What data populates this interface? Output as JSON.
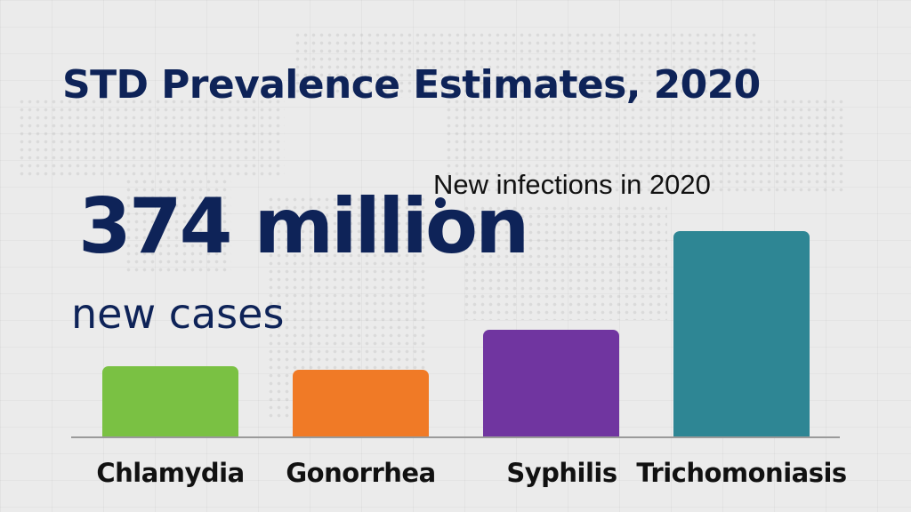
{
  "title": "STD Prevalence Estimates, 2020",
  "headline": {
    "number": "374 million",
    "caption": "new cases"
  },
  "subtitle": "New infections in 2020",
  "chart_data": {
    "type": "bar",
    "title": "STD Prevalence Estimates, 2020",
    "subtitle": "New infections in 2020",
    "annotation": "374 million new cases",
    "categories": [
      "Chlamydia",
      "Gonorrhea",
      "Syphilis",
      "Trichomoniasis"
    ],
    "values": [
      79,
      75,
      120,
      231
    ],
    "value_units": "relative bar height (px, no axis/values shown)",
    "colors": [
      "#7ac143",
      "#f07a26",
      "#7035a0",
      "#2e8694"
    ],
    "xlabel": "",
    "ylabel": "",
    "grid": false,
    "legend": "none",
    "axis_visible": false
  },
  "colors": {
    "title": "#0e2358",
    "background": "#ebebeb",
    "baseline": "#9a9a9a"
  }
}
